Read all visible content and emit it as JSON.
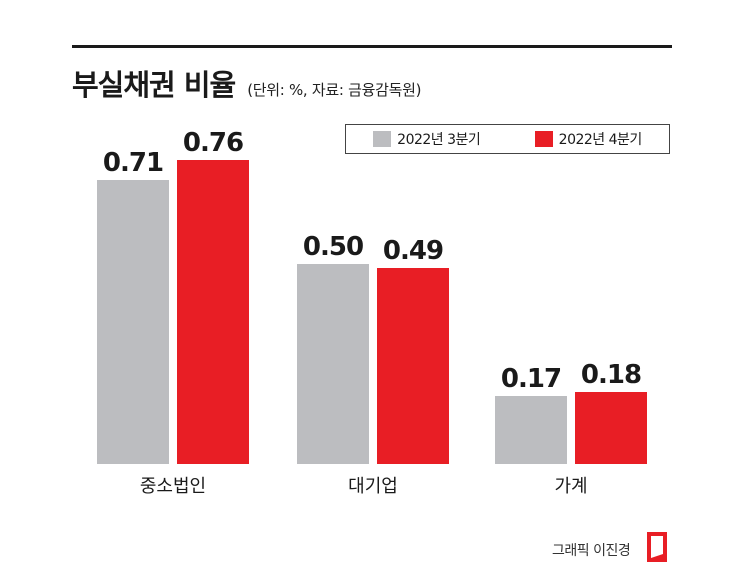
{
  "header": {
    "title": "부실채권 비율",
    "subtitle": "(단위: %, 자료: 금융감독원)"
  },
  "legend": [
    {
      "label": "2022년 3분기",
      "color": "#bcbdc0"
    },
    {
      "label": "2022년 4분기",
      "color": "#e81e25"
    }
  ],
  "credit": "그래픽 이진경",
  "chart_data": {
    "type": "bar",
    "title": "부실채권 비율",
    "categories": [
      "중소법인",
      "대기업",
      "가계"
    ],
    "series": [
      {
        "name": "2022년 3분기",
        "values": [
          0.71,
          0.5,
          0.17
        ],
        "labels": [
          "0.71",
          "0.50",
          "0.17"
        ],
        "color": "#bcbdc0"
      },
      {
        "name": "2022년 4분기",
        "values": [
          0.76,
          0.49,
          0.18
        ],
        "labels": [
          "0.76",
          "0.49",
          "0.18"
        ],
        "color": "#e81e25"
      }
    ],
    "xlabel": "",
    "ylabel": "",
    "grid": false,
    "legend_position": "top-right"
  }
}
